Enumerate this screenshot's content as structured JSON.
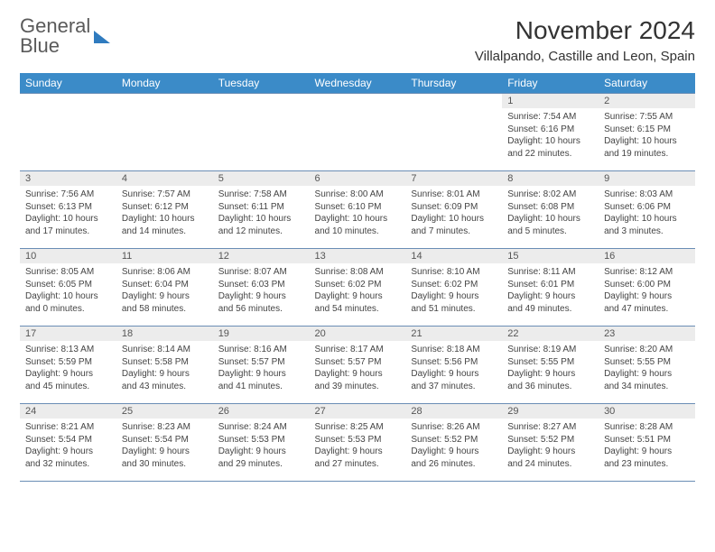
{
  "logo": {
    "line1": "General",
    "line2": "Blue"
  },
  "title": "November 2024",
  "location": "Villalpando, Castille and Leon, Spain",
  "colors": {
    "header_bg": "#3b8bc8",
    "header_text": "#ffffff",
    "daynum_bg": "#ececec",
    "border": "#6a8db5",
    "logo_gray": "#5a5a5a",
    "logo_blue": "#2f7bbf"
  },
  "weekdays": [
    "Sunday",
    "Monday",
    "Tuesday",
    "Wednesday",
    "Thursday",
    "Friday",
    "Saturday"
  ],
  "weeks": [
    [
      null,
      null,
      null,
      null,
      null,
      {
        "n": "1",
        "sr": "Sunrise: 7:54 AM",
        "ss": "Sunset: 6:16 PM",
        "d1": "Daylight: 10 hours",
        "d2": "and 22 minutes."
      },
      {
        "n": "2",
        "sr": "Sunrise: 7:55 AM",
        "ss": "Sunset: 6:15 PM",
        "d1": "Daylight: 10 hours",
        "d2": "and 19 minutes."
      }
    ],
    [
      {
        "n": "3",
        "sr": "Sunrise: 7:56 AM",
        "ss": "Sunset: 6:13 PM",
        "d1": "Daylight: 10 hours",
        "d2": "and 17 minutes."
      },
      {
        "n": "4",
        "sr": "Sunrise: 7:57 AM",
        "ss": "Sunset: 6:12 PM",
        "d1": "Daylight: 10 hours",
        "d2": "and 14 minutes."
      },
      {
        "n": "5",
        "sr": "Sunrise: 7:58 AM",
        "ss": "Sunset: 6:11 PM",
        "d1": "Daylight: 10 hours",
        "d2": "and 12 minutes."
      },
      {
        "n": "6",
        "sr": "Sunrise: 8:00 AM",
        "ss": "Sunset: 6:10 PM",
        "d1": "Daylight: 10 hours",
        "d2": "and 10 minutes."
      },
      {
        "n": "7",
        "sr": "Sunrise: 8:01 AM",
        "ss": "Sunset: 6:09 PM",
        "d1": "Daylight: 10 hours",
        "d2": "and 7 minutes."
      },
      {
        "n": "8",
        "sr": "Sunrise: 8:02 AM",
        "ss": "Sunset: 6:08 PM",
        "d1": "Daylight: 10 hours",
        "d2": "and 5 minutes."
      },
      {
        "n": "9",
        "sr": "Sunrise: 8:03 AM",
        "ss": "Sunset: 6:06 PM",
        "d1": "Daylight: 10 hours",
        "d2": "and 3 minutes."
      }
    ],
    [
      {
        "n": "10",
        "sr": "Sunrise: 8:05 AM",
        "ss": "Sunset: 6:05 PM",
        "d1": "Daylight: 10 hours",
        "d2": "and 0 minutes."
      },
      {
        "n": "11",
        "sr": "Sunrise: 8:06 AM",
        "ss": "Sunset: 6:04 PM",
        "d1": "Daylight: 9 hours",
        "d2": "and 58 minutes."
      },
      {
        "n": "12",
        "sr": "Sunrise: 8:07 AM",
        "ss": "Sunset: 6:03 PM",
        "d1": "Daylight: 9 hours",
        "d2": "and 56 minutes."
      },
      {
        "n": "13",
        "sr": "Sunrise: 8:08 AM",
        "ss": "Sunset: 6:02 PM",
        "d1": "Daylight: 9 hours",
        "d2": "and 54 minutes."
      },
      {
        "n": "14",
        "sr": "Sunrise: 8:10 AM",
        "ss": "Sunset: 6:02 PM",
        "d1": "Daylight: 9 hours",
        "d2": "and 51 minutes."
      },
      {
        "n": "15",
        "sr": "Sunrise: 8:11 AM",
        "ss": "Sunset: 6:01 PM",
        "d1": "Daylight: 9 hours",
        "d2": "and 49 minutes."
      },
      {
        "n": "16",
        "sr": "Sunrise: 8:12 AM",
        "ss": "Sunset: 6:00 PM",
        "d1": "Daylight: 9 hours",
        "d2": "and 47 minutes."
      }
    ],
    [
      {
        "n": "17",
        "sr": "Sunrise: 8:13 AM",
        "ss": "Sunset: 5:59 PM",
        "d1": "Daylight: 9 hours",
        "d2": "and 45 minutes."
      },
      {
        "n": "18",
        "sr": "Sunrise: 8:14 AM",
        "ss": "Sunset: 5:58 PM",
        "d1": "Daylight: 9 hours",
        "d2": "and 43 minutes."
      },
      {
        "n": "19",
        "sr": "Sunrise: 8:16 AM",
        "ss": "Sunset: 5:57 PM",
        "d1": "Daylight: 9 hours",
        "d2": "and 41 minutes."
      },
      {
        "n": "20",
        "sr": "Sunrise: 8:17 AM",
        "ss": "Sunset: 5:57 PM",
        "d1": "Daylight: 9 hours",
        "d2": "and 39 minutes."
      },
      {
        "n": "21",
        "sr": "Sunrise: 8:18 AM",
        "ss": "Sunset: 5:56 PM",
        "d1": "Daylight: 9 hours",
        "d2": "and 37 minutes."
      },
      {
        "n": "22",
        "sr": "Sunrise: 8:19 AM",
        "ss": "Sunset: 5:55 PM",
        "d1": "Daylight: 9 hours",
        "d2": "and 36 minutes."
      },
      {
        "n": "23",
        "sr": "Sunrise: 8:20 AM",
        "ss": "Sunset: 5:55 PM",
        "d1": "Daylight: 9 hours",
        "d2": "and 34 minutes."
      }
    ],
    [
      {
        "n": "24",
        "sr": "Sunrise: 8:21 AM",
        "ss": "Sunset: 5:54 PM",
        "d1": "Daylight: 9 hours",
        "d2": "and 32 minutes."
      },
      {
        "n": "25",
        "sr": "Sunrise: 8:23 AM",
        "ss": "Sunset: 5:54 PM",
        "d1": "Daylight: 9 hours",
        "d2": "and 30 minutes."
      },
      {
        "n": "26",
        "sr": "Sunrise: 8:24 AM",
        "ss": "Sunset: 5:53 PM",
        "d1": "Daylight: 9 hours",
        "d2": "and 29 minutes."
      },
      {
        "n": "27",
        "sr": "Sunrise: 8:25 AM",
        "ss": "Sunset: 5:53 PM",
        "d1": "Daylight: 9 hours",
        "d2": "and 27 minutes."
      },
      {
        "n": "28",
        "sr": "Sunrise: 8:26 AM",
        "ss": "Sunset: 5:52 PM",
        "d1": "Daylight: 9 hours",
        "d2": "and 26 minutes."
      },
      {
        "n": "29",
        "sr": "Sunrise: 8:27 AM",
        "ss": "Sunset: 5:52 PM",
        "d1": "Daylight: 9 hours",
        "d2": "and 24 minutes."
      },
      {
        "n": "30",
        "sr": "Sunrise: 8:28 AM",
        "ss": "Sunset: 5:51 PM",
        "d1": "Daylight: 9 hours",
        "d2": "and 23 minutes."
      }
    ]
  ]
}
